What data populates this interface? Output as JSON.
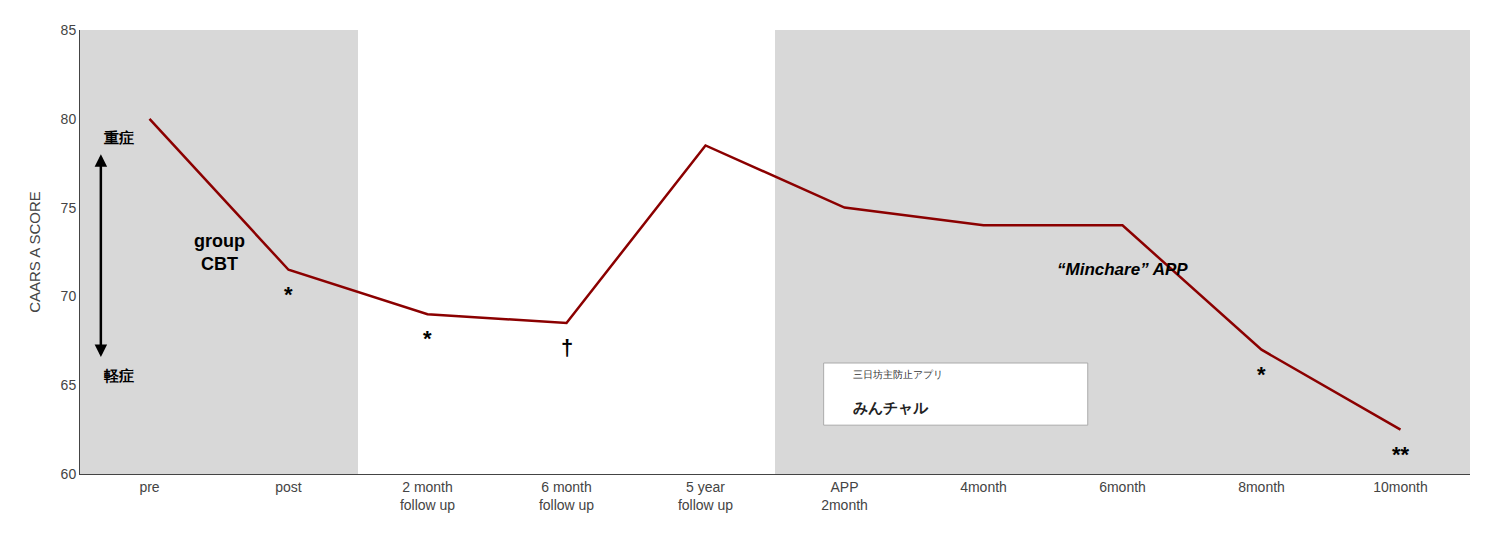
{
  "chart_data": {
    "type": "line",
    "categories": [
      "pre",
      "post",
      "2 month\nfollow up",
      "6 month\nfollow up",
      "5 year\nfollow up",
      "APP\n2month",
      "4month",
      "6month",
      "8month",
      "10month"
    ],
    "values": [
      80.0,
      71.5,
      69.0,
      68.5,
      78.5,
      75.0,
      74.0,
      74.0,
      67.0,
      62.5
    ],
    "color": "#8B0000",
    "ylabel": "CAARS A SCORE",
    "ylim": [
      60,
      85
    ],
    "yticks": [
      60,
      65,
      70,
      75,
      80,
      85
    ],
    "grid": false,
    "regions": [
      {
        "label": "group\nCBT",
        "from": "pre",
        "to": "post"
      },
      {
        "label": "“Minchare” APP",
        "from": "APP\n2month",
        "to": "10month"
      }
    ],
    "severity_arrow": {
      "top": "重症",
      "bottom": "軽症"
    },
    "significance": [
      {
        "category": "post",
        "text": "*"
      },
      {
        "category": "2 month\nfollow up",
        "text": "*"
      },
      {
        "category": "6 month\nfollow up",
        "text": "†"
      },
      {
        "category": "8month",
        "text": "*"
      },
      {
        "category": "10month",
        "text": "**"
      }
    ],
    "logo": [
      "三日坊主防止アプリ",
      "みんチャル"
    ]
  }
}
